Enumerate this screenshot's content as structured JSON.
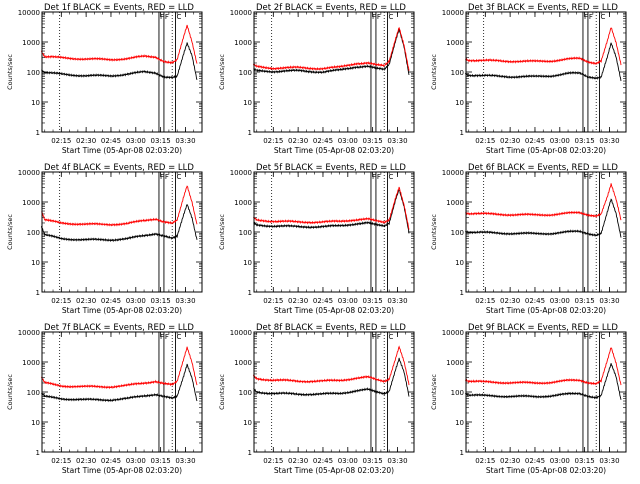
{
  "ylabel": "Counts/sec",
  "xlabel": "Start Time (05-Apr-08 02:03:20)",
  "x_tick_labels": [
    "02:15",
    "02:30",
    "02:45",
    "03:00",
    "03:15",
    "03:30"
  ],
  "y_tick_labels": [
    "1",
    "10",
    "100",
    "1000",
    "10000"
  ],
  "flag_labels": [
    "F",
    "F",
    "C"
  ],
  "colors": {
    "events": "#000000",
    "lld": "#ff0000",
    "axes": "#000000",
    "background": "#ffffff"
  },
  "chart_data": [
    {
      "type": "line",
      "title": "Det 1f BLACK = Events, RED = LLD",
      "detector": "1f",
      "xlim": [
        "02:03:20",
        "03:40:00"
      ],
      "ylim": [
        1,
        10000
      ],
      "yscale": "log",
      "x": [
        "02:03",
        "02:05",
        "02:15",
        "02:30",
        "02:45",
        "02:55",
        "03:05",
        "03:12",
        "03:17",
        "03:22",
        "03:25",
        "03:29",
        "03:31",
        "03:34",
        "03:37"
      ],
      "series": [
        {
          "name": "BLACK = Events",
          "values": [
            120,
            95,
            85,
            75,
            75,
            85,
            100,
            95,
            70,
            65,
            70,
            400,
            900,
            350,
            55
          ]
        },
        {
          "name": "RED = LLD",
          "values": [
            500,
            320,
            300,
            270,
            260,
            280,
            330,
            320,
            230,
            200,
            250,
            1500,
            3500,
            1000,
            190
          ]
        }
      ],
      "vertical_lines": [
        "03:14",
        "03:17",
        "03:24"
      ],
      "dotted_lines": [
        "02:14",
        "03:22"
      ]
    },
    {
      "type": "line",
      "title": "Det 2f BLACK = Events, RED = LLD",
      "detector": "2f",
      "xlim": [
        "02:03:20",
        "03:40:00"
      ],
      "ylim": [
        1,
        10000
      ],
      "yscale": "log",
      "x": [
        "02:03",
        "02:05",
        "02:15",
        "02:30",
        "02:45",
        "02:55",
        "03:05",
        "03:12",
        "03:17",
        "03:22",
        "03:25",
        "03:29",
        "03:31",
        "03:34",
        "03:37"
      ],
      "series": [
        {
          "name": "BLACK = Events",
          "values": [
            120,
            110,
            105,
            110,
            100,
            115,
            150,
            155,
            130,
            120,
            180,
            1200,
            2800,
            700,
            80
          ]
        },
        {
          "name": "RED = LLD",
          "values": [
            170,
            150,
            135,
            140,
            130,
            145,
            195,
            200,
            170,
            160,
            230,
            1400,
            3200,
            800,
            110
          ]
        }
      ],
      "vertical_lines": [
        "03:14",
        "03:17",
        "03:24"
      ],
      "dotted_lines": [
        "02:14",
        "03:22"
      ]
    },
    {
      "type": "line",
      "title": "Det 3f BLACK = Events, RED = LLD",
      "detector": "3f",
      "xlim": [
        "02:03:20",
        "03:40:00"
      ],
      "ylim": [
        1,
        10000
      ],
      "yscale": "log",
      "x": [
        "02:03",
        "02:05",
        "02:15",
        "02:30",
        "02:45",
        "02:55",
        "03:05",
        "03:12",
        "03:17",
        "03:22",
        "03:25",
        "03:29",
        "03:31",
        "03:34",
        "03:37"
      ],
      "series": [
        {
          "name": "BLACK = Events",
          "values": [
            90,
            80,
            75,
            70,
            70,
            75,
            90,
            90,
            70,
            65,
            70,
            350,
            900,
            300,
            50
          ]
        },
        {
          "name": "RED = LLD",
          "values": [
            280,
            250,
            240,
            230,
            225,
            235,
            270,
            280,
            220,
            200,
            240,
            1200,
            3000,
            900,
            170
          ]
        }
      ],
      "vertical_lines": [
        "03:14",
        "03:17",
        "03:24"
      ],
      "dotted_lines": [
        "02:14",
        "03:22"
      ]
    },
    {
      "type": "line",
      "title": "Det 4f BLACK = Events, RED = LLD",
      "detector": "4f",
      "xlim": [
        "02:03:20",
        "03:40:00"
      ],
      "ylim": [
        1,
        10000
      ],
      "yscale": "log",
      "x": [
        "02:03",
        "02:05",
        "02:15",
        "02:30",
        "02:45",
        "02:55",
        "03:05",
        "03:12",
        "03:17",
        "03:22",
        "03:25",
        "03:29",
        "03:31",
        "03:34",
        "03:37"
      ],
      "series": [
        {
          "name": "BLACK = Events",
          "values": [
            150,
            80,
            60,
            55,
            55,
            60,
            75,
            90,
            75,
            60,
            70,
            380,
            850,
            300,
            55
          ]
        },
        {
          "name": "RED = LLD",
          "values": [
            500,
            250,
            200,
            180,
            180,
            190,
            240,
            280,
            220,
            190,
            240,
            1500,
            3500,
            1000,
            180
          ]
        }
      ],
      "vertical_lines": [
        "03:14",
        "03:17",
        "03:24"
      ],
      "dotted_lines": [
        "02:14",
        "03:22"
      ]
    },
    {
      "type": "line",
      "title": "Det 5f BLACK = Events, RED = LLD",
      "detector": "5f",
      "xlim": [
        "02:03:20",
        "03:40:00"
      ],
      "ylim": [
        1,
        10000
      ],
      "yscale": "log",
      "x": [
        "02:03",
        "02:05",
        "02:15",
        "02:30",
        "02:45",
        "02:55",
        "03:05",
        "03:12",
        "03:17",
        "03:22",
        "03:25",
        "03:29",
        "03:31",
        "03:34",
        "03:37"
      ],
      "series": [
        {
          "name": "BLACK = Events",
          "values": [
            200,
            170,
            160,
            150,
            150,
            160,
            190,
            200,
            170,
            160,
            200,
            1300,
            2700,
            700,
            90
          ]
        },
        {
          "name": "RED = LLD",
          "values": [
            300,
            250,
            230,
            215,
            215,
            225,
            260,
            270,
            230,
            210,
            260,
            1500,
            3200,
            800,
            120
          ]
        }
      ],
      "vertical_lines": [
        "03:14",
        "03:17",
        "03:24"
      ],
      "dotted_lines": [
        "02:14",
        "03:22"
      ]
    },
    {
      "type": "line",
      "title": "Det 6f BLACK = Events, RED = LLD",
      "detector": "6f",
      "xlim": [
        "02:03:20",
        "03:40:00"
      ],
      "ylim": [
        1,
        10000
      ],
      "yscale": "log",
      "x": [
        "02:03",
        "02:05",
        "02:15",
        "02:30",
        "02:45",
        "02:55",
        "03:05",
        "03:12",
        "03:17",
        "03:22",
        "03:25",
        "03:29",
        "03:31",
        "03:34",
        "03:37"
      ],
      "series": [
        {
          "name": "BLACK = Events",
          "values": [
            110,
            100,
            95,
            90,
            88,
            90,
            100,
            105,
            90,
            80,
            90,
            500,
            1200,
            400,
            65
          ]
        },
        {
          "name": "RED = LLD",
          "values": [
            450,
            420,
            400,
            380,
            370,
            380,
            420,
            440,
            380,
            350,
            400,
            1600,
            3800,
            1200,
            250
          ]
        }
      ],
      "vertical_lines": [
        "03:14",
        "03:17",
        "03:24"
      ],
      "dotted_lines": [
        "02:14",
        "03:22"
      ]
    },
    {
      "type": "line",
      "title": "Det 7f BLACK = Events, RED = LLD",
      "detector": "7f",
      "xlim": [
        "02:03:20",
        "03:40:00"
      ],
      "ylim": [
        1,
        10000
      ],
      "yscale": "log",
      "x": [
        "02:03",
        "02:05",
        "02:15",
        "02:30",
        "02:45",
        "02:55",
        "03:05",
        "03:12",
        "03:17",
        "03:22",
        "03:25",
        "03:29",
        "03:31",
        "03:34",
        "03:37"
      ],
      "series": [
        {
          "name": "BLACK = Events",
          "values": [
            90,
            70,
            60,
            55,
            55,
            60,
            75,
            85,
            70,
            60,
            70,
            350,
            850,
            300,
            50
          ]
        },
        {
          "name": "RED = LLD",
          "values": [
            300,
            200,
            160,
            150,
            150,
            165,
            200,
            230,
            190,
            170,
            220,
            1300,
            3200,
            1000,
            170
          ]
        }
      ],
      "vertical_lines": [
        "03:14",
        "03:17",
        "03:24"
      ],
      "dotted_lines": [
        "02:14",
        "03:22"
      ]
    },
    {
      "type": "line",
      "title": "Det 8f BLACK = Events, RED = LLD",
      "detector": "8f",
      "xlim": [
        "02:03:20",
        "03:40:00"
      ],
      "ylim": [
        1,
        10000
      ],
      "yscale": "log",
      "x": [
        "02:03",
        "02:05",
        "02:15",
        "02:30",
        "02:45",
        "02:55",
        "03:05",
        "03:12",
        "03:17",
        "03:22",
        "03:25",
        "03:29",
        "03:31",
        "03:34",
        "03:37"
      ],
      "series": [
        {
          "name": "BLACK = Events",
          "values": [
            130,
            100,
            90,
            85,
            85,
            90,
            110,
            120,
            100,
            90,
            110,
            600,
            1300,
            450,
            70
          ]
        },
        {
          "name": "RED = LLD",
          "values": [
            350,
            280,
            250,
            230,
            230,
            245,
            290,
            310,
            260,
            230,
            280,
            1400,
            3300,
            1000,
            170
          ]
        }
      ],
      "vertical_lines": [
        "03:14",
        "03:17",
        "03:24"
      ],
      "dotted_lines": [
        "02:14",
        "03:22"
      ]
    },
    {
      "type": "line",
      "title": "Det 9f BLACK = Events, RED = LLD",
      "detector": "9f",
      "xlim": [
        "02:03:20",
        "03:40:00"
      ],
      "ylim": [
        1,
        10000
      ],
      "yscale": "log",
      "x": [
        "02:03",
        "02:05",
        "02:15",
        "02:30",
        "02:45",
        "02:55",
        "03:05",
        "03:12",
        "03:17",
        "03:22",
        "03:25",
        "03:29",
        "03:31",
        "03:34",
        "03:37"
      ],
      "series": [
        {
          "name": "BLACK = Events",
          "values": [
            90,
            80,
            75,
            72,
            70,
            75,
            85,
            90,
            75,
            65,
            75,
            380,
            850,
            320,
            55
          ]
        },
        {
          "name": "RED = LLD",
          "values": [
            260,
            230,
            215,
            205,
            200,
            210,
            240,
            250,
            210,
            190,
            230,
            1200,
            3000,
            900,
            170
          ]
        }
      ],
      "vertical_lines": [
        "03:14",
        "03:17",
        "03:24"
      ],
      "dotted_lines": [
        "02:14",
        "03:22"
      ]
    }
  ]
}
